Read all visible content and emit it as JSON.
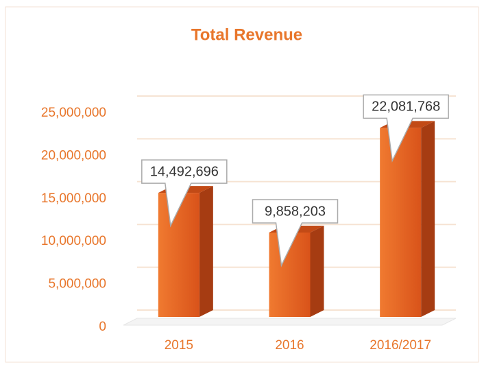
{
  "chart_data": {
    "type": "bar3d",
    "title": "Total Revenue",
    "categories": [
      "2015",
      "2016",
      "2016/2017"
    ],
    "values": [
      14492696,
      9858203,
      22081768
    ],
    "value_labels": [
      "14,492,696",
      "9,858,203",
      "22,081,768"
    ],
    "color": "#e8621e",
    "ylim": [
      0,
      25000000
    ],
    "yticks": [
      0,
      {
        "value": 5000000,
        "label": "5,000,000"
      },
      {
        "value": 10000000,
        "label": "10,000,000"
      },
      {
        "value": 15000000,
        "label": "15,000,000"
      },
      {
        "value": 20000000,
        "label": "20,000,000"
      },
      {
        "value": 25000000,
        "label": "25,000,000"
      }
    ],
    "grid": true
  }
}
